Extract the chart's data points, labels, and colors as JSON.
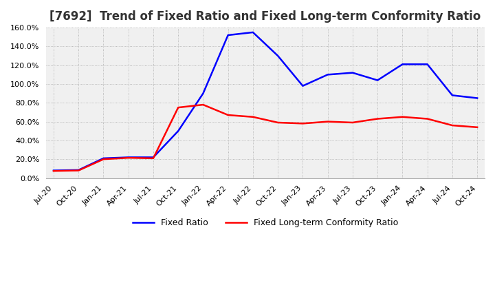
{
  "title": "[7692]  Trend of Fixed Ratio and Fixed Long-term Conformity Ratio",
  "x_labels": [
    "Jul-20",
    "Oct-20",
    "Jan-21",
    "Apr-21",
    "Jul-21",
    "Oct-21",
    "Jan-22",
    "Apr-22",
    "Jul-22",
    "Oct-22",
    "Jan-23",
    "Apr-23",
    "Jul-23",
    "Oct-23",
    "Jan-24",
    "Apr-24",
    "Jul-24",
    "Oct-24"
  ],
  "fixed_ratio": [
    8.0,
    8.5,
    21.0,
    22.0,
    22.0,
    50.0,
    90.0,
    152.0,
    155.0,
    130.0,
    98.0,
    110.0,
    112.0,
    104.0,
    121.0,
    121.0,
    88.0,
    85.0
  ],
  "fixed_lt_ratio": [
    7.5,
    8.0,
    20.0,
    21.5,
    21.0,
    75.0,
    78.0,
    67.0,
    65.0,
    59.0,
    58.0,
    60.0,
    59.0,
    63.0,
    65.0,
    63.0,
    56.0,
    54.0
  ],
  "ylim": [
    0.0,
    160.0
  ],
  "yticks": [
    0.0,
    20.0,
    40.0,
    60.0,
    80.0,
    100.0,
    120.0,
    140.0,
    160.0
  ],
  "fixed_ratio_color": "#0000FF",
  "fixed_lt_ratio_color": "#FF0000",
  "background_color": "#FFFFFF",
  "plot_bg_color": "#F0F0F0",
  "grid_color": "#AAAAAA",
  "legend_fixed": "Fixed Ratio",
  "legend_lt": "Fixed Long-term Conformity Ratio",
  "title_fontsize": 12,
  "tick_fontsize": 8,
  "legend_fontsize": 9
}
